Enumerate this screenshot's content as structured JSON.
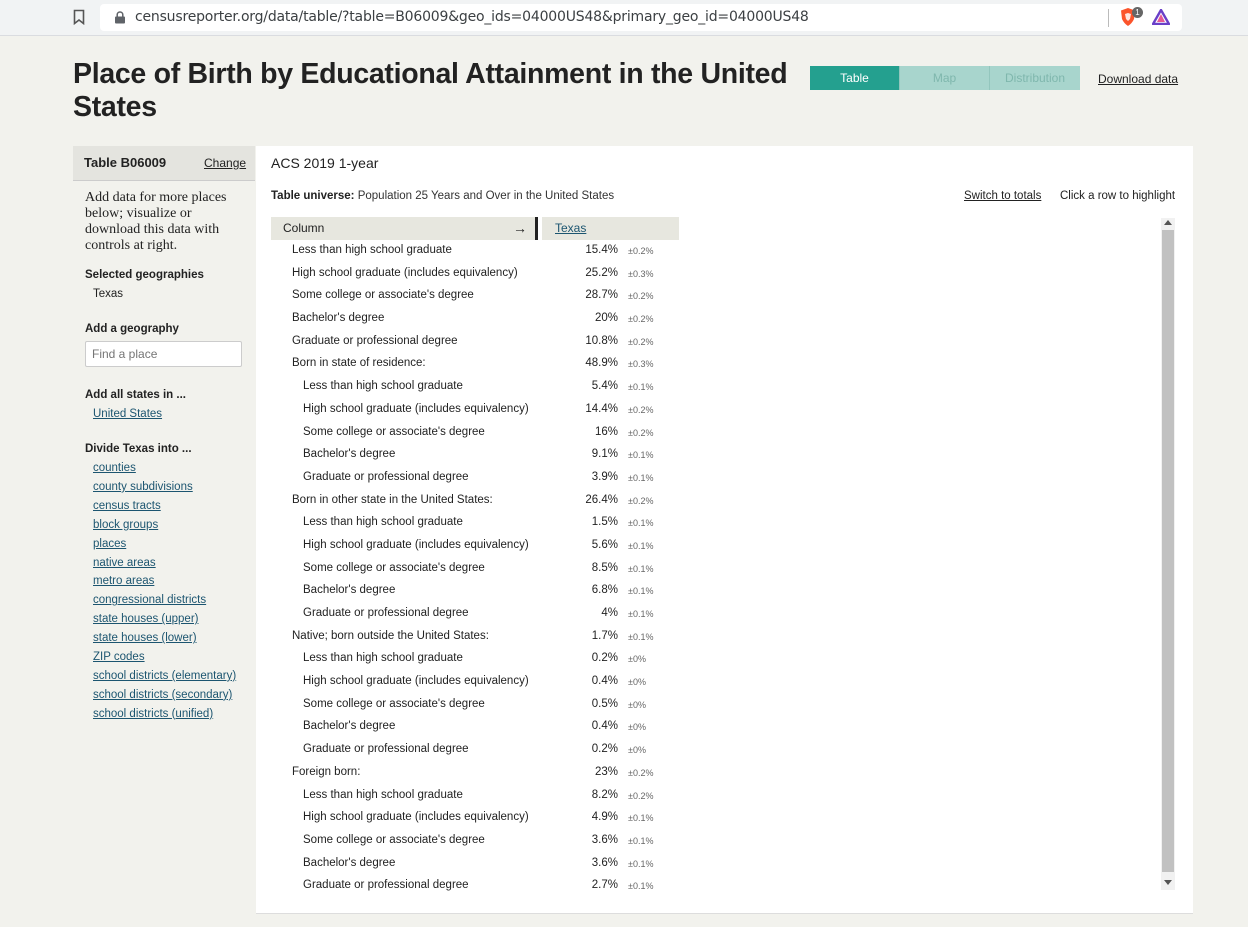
{
  "browser": {
    "url": "censusreporter.org/data/table/?table=B06009&geo_ids=04000US48&primary_geo_id=04000US48",
    "badge_count": "1"
  },
  "header": {
    "title": "Place of Birth by Educational Attainment in the United States",
    "tabs": [
      {
        "label": "Table",
        "active": true
      },
      {
        "label": "Map",
        "active": false
      },
      {
        "label": "Distribution",
        "active": false
      }
    ],
    "download_label": "Download data"
  },
  "sidebar": {
    "table_id": "Table B06009",
    "change_label": "Change",
    "intro": "Add data for more places below; visualize or download this data with controls at right.",
    "selected_heading": "Selected geographies",
    "selected_value": "Texas",
    "add_heading": "Add a geography",
    "search_placeholder": "Find a place",
    "add_all_heading": "Add all states in ...",
    "add_all_link": "United States",
    "divide_heading": "Divide Texas into ...",
    "divide_links": [
      "counties",
      "county subdivisions",
      "census tracts",
      "block groups",
      "places",
      "native areas",
      "metro areas",
      "congressional districts",
      "state houses (upper)",
      "state houses (lower)",
      "ZIP codes",
      "school districts (elementary)",
      "school districts (secondary)",
      "school districts (unified)"
    ]
  },
  "main": {
    "dataset": "ACS 2019 1-year",
    "universe_label": "Table universe:",
    "universe_value": "Population 25 Years and Over in the United States",
    "switch_label": "Switch to totals",
    "highlight_hint": "Click a row to highlight",
    "col_header": "Column",
    "arrow": "→",
    "geo_header": "Texas",
    "rows": [
      {
        "label": "Less than high school graduate",
        "value": "15.4%",
        "moe": "±0.2%",
        "indent": 0
      },
      {
        "label": "High school graduate (includes equivalency)",
        "value": "25.2%",
        "moe": "±0.3%",
        "indent": 0
      },
      {
        "label": "Some college or associate's degree",
        "value": "28.7%",
        "moe": "±0.2%",
        "indent": 0
      },
      {
        "label": "Bachelor's degree",
        "value": "20%",
        "moe": "±0.2%",
        "indent": 0
      },
      {
        "label": "Graduate or professional degree",
        "value": "10.8%",
        "moe": "±0.2%",
        "indent": 0
      },
      {
        "label": "Born in state of residence:",
        "value": "48.9%",
        "moe": "±0.3%",
        "indent": 0
      },
      {
        "label": "Less than high school graduate",
        "value": "5.4%",
        "moe": "±0.1%",
        "indent": 1
      },
      {
        "label": "High school graduate (includes equivalency)",
        "value": "14.4%",
        "moe": "±0.2%",
        "indent": 1
      },
      {
        "label": "Some college or associate's degree",
        "value": "16%",
        "moe": "±0.2%",
        "indent": 1
      },
      {
        "label": "Bachelor's degree",
        "value": "9.1%",
        "moe": "±0.1%",
        "indent": 1
      },
      {
        "label": "Graduate or professional degree",
        "value": "3.9%",
        "moe": "±0.1%",
        "indent": 1
      },
      {
        "label": "Born in other state in the United States:",
        "value": "26.4%",
        "moe": "±0.2%",
        "indent": 0
      },
      {
        "label": "Less than high school graduate",
        "value": "1.5%",
        "moe": "±0.1%",
        "indent": 1
      },
      {
        "label": "High school graduate (includes equivalency)",
        "value": "5.6%",
        "moe": "±0.1%",
        "indent": 1
      },
      {
        "label": "Some college or associate's degree",
        "value": "8.5%",
        "moe": "±0.1%",
        "indent": 1
      },
      {
        "label": "Bachelor's degree",
        "value": "6.8%",
        "moe": "±0.1%",
        "indent": 1
      },
      {
        "label": "Graduate or professional degree",
        "value": "4%",
        "moe": "±0.1%",
        "indent": 1
      },
      {
        "label": "Native; born outside the United States:",
        "value": "1.7%",
        "moe": "±0.1%",
        "indent": 0
      },
      {
        "label": "Less than high school graduate",
        "value": "0.2%",
        "moe": "±0%",
        "indent": 1
      },
      {
        "label": "High school graduate (includes equivalency)",
        "value": "0.4%",
        "moe": "±0%",
        "indent": 1
      },
      {
        "label": "Some college or associate's degree",
        "value": "0.5%",
        "moe": "±0%",
        "indent": 1
      },
      {
        "label": "Bachelor's degree",
        "value": "0.4%",
        "moe": "±0%",
        "indent": 1
      },
      {
        "label": "Graduate or professional degree",
        "value": "0.2%",
        "moe": "±0%",
        "indent": 1
      },
      {
        "label": "Foreign born:",
        "value": "23%",
        "moe": "±0.2%",
        "indent": 0
      },
      {
        "label": "Less than high school graduate",
        "value": "8.2%",
        "moe": "±0.2%",
        "indent": 1
      },
      {
        "label": "High school graduate (includes equivalency)",
        "value": "4.9%",
        "moe": "±0.1%",
        "indent": 1
      },
      {
        "label": "Some college or associate's degree",
        "value": "3.6%",
        "moe": "±0.1%",
        "indent": 1
      },
      {
        "label": "Bachelor's degree",
        "value": "3.6%",
        "moe": "±0.1%",
        "indent": 1
      },
      {
        "label": "Graduate or professional degree",
        "value": "2.7%",
        "moe": "±0.1%",
        "indent": 1
      }
    ]
  },
  "colors": {
    "accent": "#24a08f",
    "accent_light": "#a8d5cd",
    "link": "#1c5570",
    "page_bg": "#f2f2ed"
  },
  "icons": [
    "bookmark-icon",
    "lock-icon",
    "brave-shield-icon",
    "brave-rewards-icon",
    "arrow-right-icon",
    "scroll-up-icon",
    "scroll-down-icon"
  ]
}
